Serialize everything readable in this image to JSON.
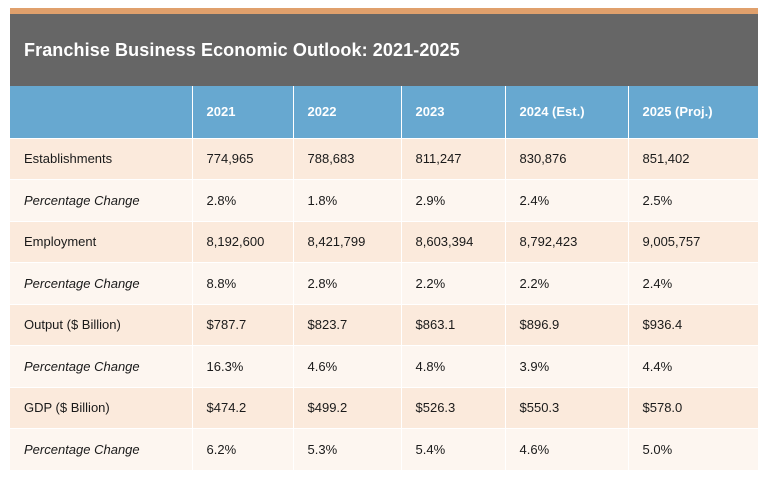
{
  "title": "Franchise Business Economic Outlook: 2021-2025",
  "colors": {
    "accent": "#e0a06c",
    "title_bg": "#666666",
    "header_bg": "#67a8d0",
    "row_main": "#fbeadc",
    "row_pct": "#fdf6f0"
  },
  "table": {
    "headers": [
      "",
      "2021",
      "2022",
      "2023",
      "2024 (Est.)",
      "2025 (Proj.)"
    ],
    "rows": [
      {
        "label": "Establishments",
        "values": [
          "774,965",
          "788,683",
          "811,247",
          "830,876",
          "851,402"
        ]
      },
      {
        "label": "Percentage Change",
        "values": [
          "2.8%",
          "1.8%",
          "2.9%",
          "2.4%",
          "2.5%"
        ]
      },
      {
        "label": "Employment",
        "values": [
          "8,192,600",
          "8,421,799",
          "8,603,394",
          "8,792,423",
          "9,005,757"
        ]
      },
      {
        "label": "Percentage Change",
        "values": [
          "8.8%",
          "2.8%",
          "2.2%",
          "2.2%",
          "2.4%"
        ]
      },
      {
        "label": "Output ($ Billion)",
        "values": [
          "$787.7",
          "$823.7",
          "$863.1",
          "$896.9",
          "$936.4"
        ]
      },
      {
        "label": "Percentage Change",
        "values": [
          "16.3%",
          "4.6%",
          "4.8%",
          "3.9%",
          "4.4%"
        ]
      },
      {
        "label": "GDP ($ Billion)",
        "values": [
          "$474.2",
          "$499.2",
          "$526.3",
          "$550.3",
          "$578.0"
        ]
      },
      {
        "label": "Percentage Change",
        "values": [
          "6.2%",
          "5.3%",
          "5.4%",
          "4.6%",
          "5.0%"
        ]
      }
    ]
  }
}
